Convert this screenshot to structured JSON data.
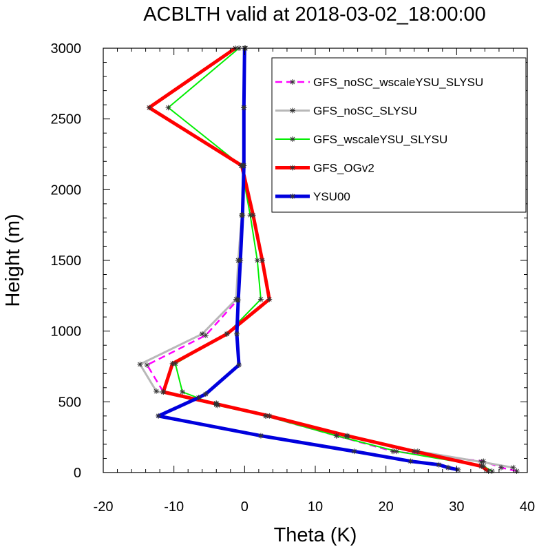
{
  "chart_data": {
    "type": "line",
    "title": "ACBLTH valid at 2018-03-02_18:00:00",
    "xlabel": "Theta (K)",
    "ylabel": "Height (m)",
    "xlim": [
      -20,
      40
    ],
    "ylim": [
      0,
      3000
    ],
    "xticks": [
      "-20",
      "-10",
      "0",
      "10",
      "20",
      "30",
      "40"
    ],
    "yticks": [
      "0",
      "500",
      "1000",
      "1500",
      "2000",
      "2500",
      "3000"
    ],
    "grid": false,
    "legend": "top-right",
    "series": [
      {
        "name": "GFS_noSC_wscaleYSU_SLYSU",
        "color": "#ff00ff",
        "dash": "dashed",
        "width": 2.5,
        "points": [
          [
            38.5,
            10
          ],
          [
            36.3,
            35
          ],
          [
            33.8,
            80
          ],
          [
            21.0,
            150
          ],
          [
            13.0,
            260
          ],
          [
            3.0,
            400
          ],
          [
            -4.0,
            490
          ],
          [
            -11.5,
            570
          ],
          [
            -13.8,
            760
          ],
          [
            -5.5,
            970
          ],
          [
            -1.0,
            1220
          ],
          [
            -0.9,
            1500
          ],
          [
            -0.4,
            1820
          ],
          [
            -0.2,
            2170
          ],
          [
            -0.1,
            2580
          ],
          [
            0.1,
            3000
          ]
        ]
      },
      {
        "name": "GFS_noSC_SLYSU",
        "color": "#b8b8b8",
        "dash": "solid",
        "width": 3,
        "points": [
          [
            38.0,
            35
          ],
          [
            33.5,
            75
          ],
          [
            24.5,
            150
          ],
          [
            14.5,
            255
          ],
          [
            3.0,
            400
          ],
          [
            -4.0,
            480
          ],
          [
            -12.5,
            575
          ],
          [
            -14.8,
            765
          ],
          [
            -6.0,
            980
          ],
          [
            -1.2,
            1225
          ],
          [
            -0.9,
            1500
          ],
          [
            -0.4,
            1820
          ],
          [
            -0.2,
            2170
          ],
          [
            -0.1,
            2580
          ],
          [
            0.1,
            3000
          ]
        ]
      },
      {
        "name": "GFS_wscaleYSU_SLYSU",
        "color": "#00ee00",
        "dash": "solid",
        "width": 2,
        "points": [
          [
            35.0,
            10
          ],
          [
            33.8,
            45
          ],
          [
            21.5,
            150
          ],
          [
            13.0,
            260
          ],
          [
            3.0,
            400
          ],
          [
            -3.8,
            475
          ],
          [
            -8.8,
            570
          ],
          [
            -9.8,
            770
          ],
          [
            -2.5,
            980
          ],
          [
            2.3,
            1225
          ],
          [
            1.8,
            1500
          ],
          [
            0.8,
            1820
          ],
          [
            -0.5,
            2170
          ],
          [
            -10.8,
            2580
          ],
          [
            -0.8,
            3000
          ]
        ]
      },
      {
        "name": "GFS_OGv2",
        "color": "#ff0000",
        "dash": "solid",
        "width": 5,
        "points": [
          [
            34.5,
            10
          ],
          [
            33.5,
            45
          ],
          [
            24.0,
            150
          ],
          [
            14.5,
            260
          ],
          [
            3.5,
            400
          ],
          [
            -4.0,
            485
          ],
          [
            -11.5,
            570
          ],
          [
            -10.2,
            770
          ],
          [
            -2.5,
            980
          ],
          [
            3.5,
            1225
          ],
          [
            2.5,
            1500
          ],
          [
            1.2,
            1820
          ],
          [
            -0.4,
            2170
          ],
          [
            -13.5,
            2580
          ],
          [
            -1.3,
            3000
          ]
        ]
      },
      {
        "name": "YSU00",
        "color": "#0000dd",
        "dash": "solid",
        "width": 5,
        "points": [
          [
            30.2,
            20
          ],
          [
            28.8,
            35
          ],
          [
            27.5,
            55
          ],
          [
            23.5,
            80
          ],
          [
            15.5,
            150
          ],
          [
            2.3,
            260
          ],
          [
            -12.2,
            400
          ],
          [
            -6.5,
            530
          ],
          [
            -5.5,
            555
          ],
          [
            -0.8,
            760
          ],
          [
            -1.1,
            980
          ],
          [
            -0.9,
            1220
          ],
          [
            -0.6,
            1500
          ],
          [
            -0.3,
            1820
          ],
          [
            -0.1,
            2170
          ],
          [
            -0.1,
            2580
          ],
          [
            0.0,
            3000
          ]
        ]
      }
    ]
  }
}
